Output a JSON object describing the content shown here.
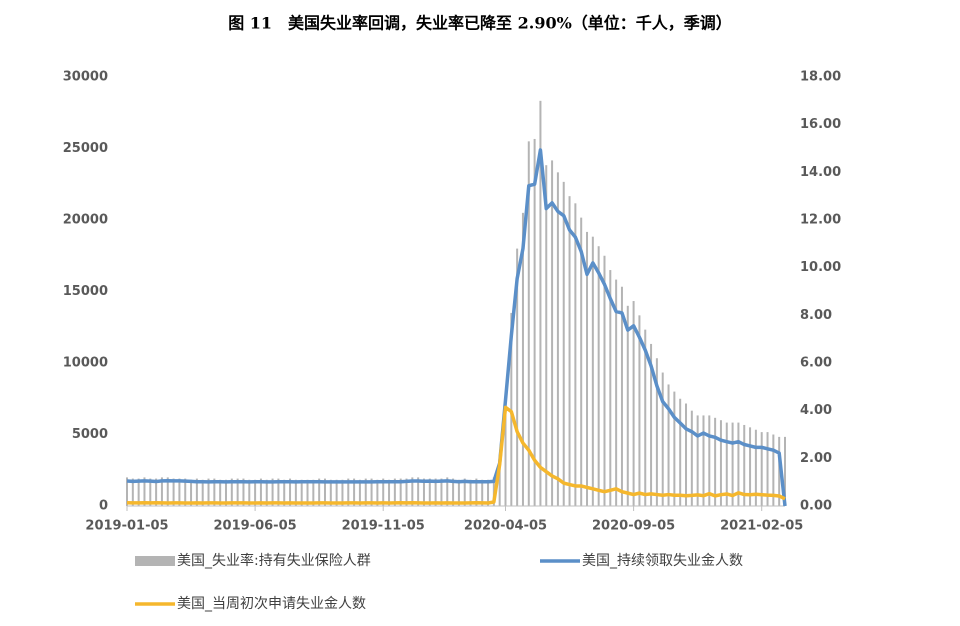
{
  "chart_data": {
    "type": "combo",
    "title": "图 11　美国失业率回调，失业率已降至 2.90%（单位：千人，季调）",
    "categories": [
      "2019-01-05",
      null,
      null,
      null,
      null,
      null,
      null,
      null,
      null,
      null,
      null,
      null,
      null,
      null,
      null,
      null,
      null,
      null,
      null,
      null,
      null,
      null,
      "2019-06-05",
      null,
      null,
      null,
      null,
      null,
      null,
      null,
      null,
      null,
      null,
      null,
      null,
      null,
      null,
      null,
      null,
      null,
      null,
      null,
      null,
      null,
      "2019-11-05",
      null,
      null,
      null,
      null,
      null,
      null,
      null,
      null,
      null,
      null,
      null,
      null,
      null,
      null,
      null,
      null,
      null,
      null,
      null,
      null,
      "2020-04-05",
      null,
      null,
      null,
      null,
      null,
      null,
      null,
      null,
      null,
      null,
      null,
      null,
      null,
      null,
      null,
      null,
      null,
      null,
      null,
      null,
      null,
      "2020-09-05",
      null,
      null,
      null,
      null,
      null,
      null,
      null,
      null,
      null,
      null,
      null,
      null,
      null,
      null,
      null,
      null,
      null,
      null,
      null,
      null,
      null,
      "2021-02-05",
      null,
      null,
      null,
      null
    ],
    "series": [
      {
        "name": "美国_失业率:持有失业保险人群",
        "type": "bar",
        "axis": "y2",
        "color": "#b4b4b4",
        "values": [
          1.2,
          1.15,
          1.15,
          1.2,
          1.15,
          1.15,
          1.2,
          1.2,
          1.15,
          1.15,
          1.15,
          1.1,
          1.15,
          1.1,
          1.15,
          1.15,
          1.1,
          1.1,
          1.15,
          1.15,
          1.15,
          1.1,
          1.1,
          1.15,
          1.1,
          1.15,
          1.15,
          1.1,
          1.15,
          1.1,
          1.1,
          1.1,
          1.1,
          1.15,
          1.15,
          1.1,
          1.1,
          1.1,
          1.15,
          1.15,
          1.1,
          1.15,
          1.15,
          1.1,
          1.15,
          1.1,
          1.15,
          1.15,
          1.15,
          1.2,
          1.2,
          1.15,
          1.15,
          1.15,
          1.15,
          1.2,
          1.15,
          1.1,
          1.15,
          1.1,
          1.15,
          1.1,
          1.1,
          1.2,
          2.1,
          4.5,
          8.1,
          10.8,
          12.3,
          15.3,
          15.4,
          17.0,
          14.3,
          14.5,
          14.0,
          13.6,
          13.0,
          12.7,
          12.1,
          11.5,
          11.3,
          10.9,
          10.5,
          9.9,
          9.5,
          9.2,
          8.4,
          8.6,
          8.0,
          7.4,
          6.8,
          6.2,
          5.6,
          5.1,
          4.8,
          4.5,
          4.3,
          4.0,
          3.8,
          3.8,
          3.8,
          3.7,
          3.6,
          3.5,
          3.5,
          3.5,
          3.4,
          3.3,
          3.2,
          3.1,
          3.1,
          3.0,
          2.9,
          2.9
        ]
      },
      {
        "name": "美国_持续领取失业金人数",
        "type": "line",
        "color": "#5b8fc8",
        "values": [
          1750,
          1720,
          1740,
          1760,
          1740,
          1710,
          1760,
          1770,
          1760,
          1760,
          1740,
          1720,
          1700,
          1700,
          1690,
          1700,
          1700,
          1690,
          1700,
          1700,
          1700,
          1690,
          1700,
          1700,
          1690,
          1690,
          1700,
          1700,
          1700,
          1690,
          1700,
          1700,
          1700,
          1700,
          1690,
          1690,
          1690,
          1690,
          1690,
          1690,
          1690,
          1690,
          1690,
          1700,
          1700,
          1700,
          1700,
          1700,
          1720,
          1750,
          1750,
          1730,
          1740,
          1720,
          1740,
          1760,
          1720,
          1700,
          1720,
          1700,
          1700,
          1700,
          1700,
          1720,
          3000,
          7400,
          11900,
          15900,
          18000,
          22400,
          22500,
          24900,
          20800,
          21200,
          20600,
          20300,
          19300,
          18800,
          17800,
          16200,
          17000,
          16300,
          15500,
          14500,
          13600,
          13500,
          12300,
          12600,
          11800,
          10900,
          9800,
          8400,
          7300,
          6800,
          6200,
          5800,
          5400,
          5200,
          4900,
          5100,
          4900,
          4800,
          4600,
          4500,
          4400,
          4500,
          4300,
          4200,
          4100,
          4100,
          4000,
          3900,
          3700,
          0
        ]
      },
      {
        "name": "美国_当周初次申请失业金人数",
        "type": "line",
        "color": "#f5b72d",
        "values": [
          230,
          220,
          220,
          230,
          220,
          230,
          220,
          210,
          220,
          220,
          210,
          210,
          220,
          210,
          220,
          220,
          210,
          210,
          220,
          220,
          220,
          210,
          210,
          220,
          210,
          220,
          220,
          210,
          220,
          210,
          210,
          210,
          210,
          220,
          220,
          210,
          210,
          210,
          220,
          220,
          210,
          220,
          220,
          210,
          220,
          210,
          220,
          230,
          220,
          230,
          220,
          210,
          210,
          220,
          210,
          220,
          210,
          210,
          210,
          220,
          230,
          220,
          210,
          280,
          2900,
          6900,
          6600,
          5200,
          4400,
          3900,
          3200,
          2700,
          2400,
          2100,
          1900,
          1600,
          1500,
          1400,
          1400,
          1300,
          1200,
          1100,
          1000,
          1100,
          1200,
          1000,
          900,
          800,
          900,
          800,
          850,
          800,
          750,
          800,
          750,
          750,
          720,
          740,
          780,
          720,
          860,
          710,
          790,
          840,
          730,
          920,
          800,
          790,
          820,
          790,
          760,
          740,
          700,
          500
        ]
      }
    ],
    "ylim": [
      0,
      30000
    ],
    "yticks": [
      0,
      5000,
      10000,
      15000,
      20000,
      25000,
      30000
    ],
    "y2lim": [
      0,
      18
    ],
    "y2ticks": [
      {
        "value": 0,
        "label": "0.00"
      },
      {
        "value": 2,
        "label": "2.00"
      },
      {
        "value": 4,
        "label": "4.00"
      },
      {
        "value": 6,
        "label": "6.00"
      },
      {
        "value": 8,
        "label": "8.00"
      },
      {
        "value": 10,
        "label": "10.00"
      },
      {
        "value": 12,
        "label": "12.00"
      },
      {
        "value": 14,
        "label": "14.00"
      },
      {
        "value": 16,
        "label": "16.00"
      },
      {
        "value": 18,
        "label": "18.00"
      }
    ],
    "grid": false
  }
}
